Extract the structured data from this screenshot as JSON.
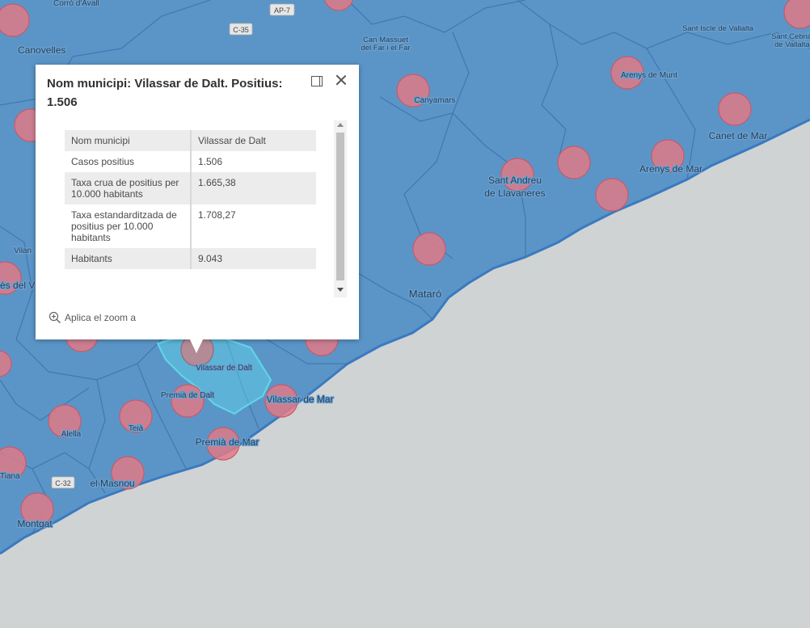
{
  "colors": {
    "land": "#5b95c7",
    "sea": "#d0d3d4",
    "coast": "#3a7ac0",
    "circle_fill": "#e07a87",
    "selected": "#5fd7ea"
  },
  "map": {
    "labels": [
      "Corró d'Avall",
      "Canovelles",
      "Can Massuet",
      "del Far i el Far",
      "Sant Iscle de Vallalta",
      "Sant Cebrià",
      "de Vallalta",
      "Arenys de Munt",
      "Canyamars",
      "Canet de Mar",
      "Sant Andreu",
      "de Llavaneres",
      "Arenys de Mar",
      "Vilan",
      "ès del V",
      "Mataró",
      "Vilassar de Dalt",
      "Premià de Dalt",
      "Vilassar de Mar",
      "Alella",
      "Teià",
      "Premià de Mar",
      "Tiana",
      "el Masnou",
      "Montgat"
    ],
    "roads": [
      "AP-7",
      "C-35",
      "C-32"
    ]
  },
  "popup": {
    "title": "Nom municipi: Vilassar de Dalt. Positius: 1.506",
    "dock_icon": "dock-icon",
    "close_icon": "close-icon",
    "rows": [
      {
        "field": "Nom municipi",
        "value": "Vilassar de Dalt"
      },
      {
        "field": "Casos positius",
        "value": "1.506"
      },
      {
        "field": "Taxa crua de positius per 10.000 habitants",
        "value": "1.665,38"
      },
      {
        "field": "Taxa estandarditzada de positius per 10.000 habitants",
        "value": "1.708,27"
      },
      {
        "field": "Habitants",
        "value": "9.043"
      }
    ],
    "zoom_label": "Aplica el zoom a",
    "zoom_icon": "zoom-in-icon"
  }
}
